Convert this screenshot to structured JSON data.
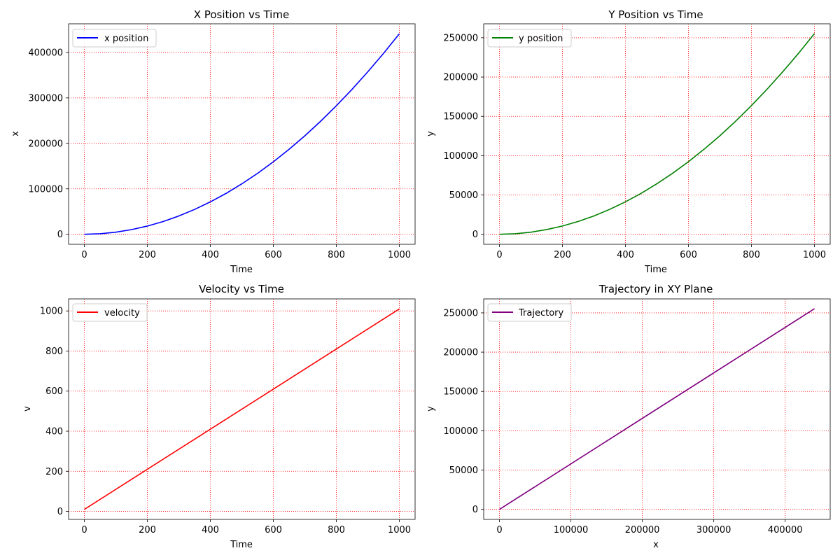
{
  "figure": {
    "grid_color": "#ff0000",
    "axes_color": "#000000",
    "background": "#ffffff"
  },
  "chart_data": [
    {
      "type": "line",
      "title": "X Position vs Time",
      "xlabel": "Time",
      "ylabel": "x",
      "xlim": [
        -50,
        1050
      ],
      "ylim": [
        -22000,
        463000
      ],
      "xticks": [
        0,
        200,
        400,
        600,
        800,
        1000
      ],
      "yticks": [
        0,
        100000,
        200000,
        300000,
        400000
      ],
      "grid": true,
      "legend_loc": "upper-left",
      "series": [
        {
          "name": "x position",
          "color": "#0000ff",
          "x": [
            0,
            50,
            100,
            150,
            200,
            250,
            300,
            350,
            400,
            450,
            500,
            550,
            600,
            650,
            700,
            750,
            800,
            850,
            900,
            950,
            1000
          ],
          "y": [
            0,
            1200,
            4600,
            10300,
            18100,
            28100,
            40300,
            54700,
            71300,
            90000,
            111000,
            134100,
            159500,
            187000,
            216700,
            248600,
            282700,
            319000,
            357500,
            398200,
            441100
          ]
        }
      ]
    },
    {
      "type": "line",
      "title": "Y Position vs Time",
      "xlabel": "Time",
      "ylabel": "y",
      "xlim": [
        -50,
        1050
      ],
      "ylim": [
        -12750,
        267750
      ],
      "xticks": [
        0,
        200,
        400,
        600,
        800,
        1000
      ],
      "yticks": [
        0,
        50000,
        100000,
        150000,
        200000,
        250000
      ],
      "grid": true,
      "legend_loc": "upper-left",
      "series": [
        {
          "name": "y position",
          "color": "#008000",
          "x": [
            0,
            50,
            100,
            150,
            200,
            250,
            300,
            350,
            400,
            450,
            500,
            550,
            600,
            650,
            700,
            750,
            800,
            850,
            900,
            950,
            1000
          ],
          "y": [
            0,
            700,
            2700,
            6000,
            10500,
            16300,
            23300,
            31700,
            41300,
            52100,
            64300,
            77700,
            92300,
            108300,
            125400,
            143900,
            163700,
            184700,
            207000,
            230500,
            255300
          ]
        }
      ]
    },
    {
      "type": "line",
      "title": "Velocity vs Time",
      "xlabel": "Time",
      "ylabel": "v",
      "xlim": [
        -50,
        1050
      ],
      "ylim": [
        -40,
        1060
      ],
      "xticks": [
        0,
        200,
        400,
        600,
        800,
        1000
      ],
      "yticks": [
        0,
        200,
        400,
        600,
        800,
        1000
      ],
      "grid": true,
      "legend_loc": "upper-left",
      "series": [
        {
          "name": "velocity",
          "color": "#ff0000",
          "x": [
            0,
            1000
          ],
          "y": [
            10,
            1010
          ]
        }
      ]
    },
    {
      "type": "line",
      "title": "Trajectory in XY Plane",
      "xlabel": "x",
      "ylabel": "y",
      "xlim": [
        -22000,
        463000
      ],
      "ylim": [
        -12750,
        267750
      ],
      "xticks": [
        0,
        100000,
        200000,
        300000,
        400000
      ],
      "yticks": [
        0,
        50000,
        100000,
        150000,
        200000,
        250000
      ],
      "grid": true,
      "legend_loc": "upper-left",
      "series": [
        {
          "name": "Trajectory",
          "color": "#800080",
          "x": [
            0,
            441100
          ],
          "y": [
            0,
            255300
          ]
        }
      ]
    }
  ]
}
